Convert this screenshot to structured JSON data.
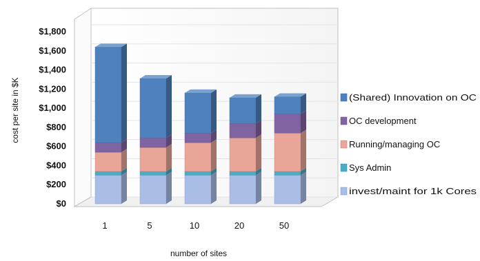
{
  "chart_data": {
    "type": "bar",
    "stacked": true,
    "three_d": true,
    "title": "",
    "xlabel": "number of sites",
    "ylabel": "cost per site in $K",
    "categories": [
      "1",
      "5",
      "10",
      "20",
      "50"
    ],
    "y_ticks": [
      "$0",
      "$200",
      "$400",
      "$600",
      "$800",
      "$1,000",
      "$1,200",
      "$1,400",
      "$1,600",
      "$1,800"
    ],
    "ylim": [
      0,
      1800
    ],
    "grid": true,
    "legend_position": "right",
    "series": [
      {
        "name": "invest/maint  for 1k Cores",
        "color": "#a9bde6",
        "values": [
          300,
          300,
          300,
          300,
          300
        ]
      },
      {
        "name": "Sys Admin",
        "color": "#4bacc6",
        "values": [
          40,
          40,
          40,
          40,
          40
        ]
      },
      {
        "name": "Running/managing OC",
        "color": "#e8a598",
        "values": [
          200,
          250,
          300,
          350,
          400
        ]
      },
      {
        "name": "OC development",
        "color": "#8064a2",
        "values": [
          100,
          100,
          100,
          150,
          200
        ]
      },
      {
        "name": "(Shared)  Innovation on OC",
        "color": "#4f81bd",
        "values": [
          1000,
          620,
          420,
          270,
          180
        ]
      }
    ]
  }
}
